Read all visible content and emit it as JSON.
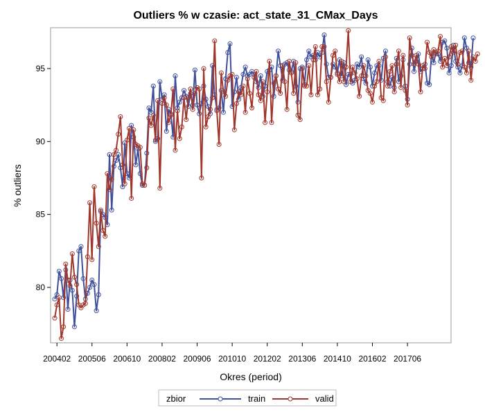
{
  "chart_data": {
    "type": "line",
    "title": "Outliers % w czasie: act_state_31_CMax_Days",
    "xlabel": "Okres (period)",
    "ylabel": "% outliers",
    "x_ticks": [
      "200402",
      "200506",
      "200610",
      "200802",
      "200906",
      "201010",
      "201202",
      "201306",
      "201410",
      "201602",
      "201706"
    ],
    "x_range": [
      "200401",
      "201812"
    ],
    "y_ticks": [
      80,
      85,
      90,
      95
    ],
    "ylim": [
      76.2,
      97.8
    ],
    "grid": false,
    "legend": {
      "title": "zbior",
      "placement": "bottom-center"
    },
    "series": [
      {
        "name": "train",
        "color": "#3f4f9b",
        "start": "200401",
        "values": [
          79.2,
          79.5,
          81.1,
          80.6,
          79.3,
          81.2,
          78.5,
          80.5,
          79.8,
          77.3,
          79.4,
          82.5,
          82.8,
          80.6,
          79.2,
          79.6,
          80.0,
          80.5,
          80.2,
          78.4,
          79.5,
          85.2,
          85.0,
          84.8,
          84.3,
          89.1,
          85.3,
          88.3,
          88.7,
          89.1,
          88.2,
          86.9,
          89.9,
          87.8,
          87.5,
          91.1,
          90.3,
          88.4,
          89.5,
          87.8,
          87.0,
          87.0,
          89.2,
          92.3,
          92.0,
          93.8,
          90.0,
          90.2,
          94.1,
          92.9,
          93.2,
          90.7,
          92.2,
          91.9,
          90.3,
          94.5,
          92.3,
          92.7,
          93.0,
          93.5,
          93.1,
          92.4,
          93.3,
          92.5,
          94.9,
          92.5,
          91.9,
          92.6,
          93.8,
          92.9,
          92.4,
          91.9,
          95.2,
          93.2,
          92.2,
          92.3,
          93.5,
          92.0,
          94.3,
          96.1,
          96.7,
          92.4,
          93.4,
          94.4,
          92.9,
          93.7,
          94.6,
          95.1,
          94.5,
          94.6,
          94.8,
          94.6,
          94.1,
          93.7,
          94.5,
          93.1,
          93.8,
          94.8,
          94.9,
          95.1,
          93.1,
          94.5,
          96.2,
          95.2,
          94.2,
          95.3,
          95.4,
          94.9,
          94.8,
          95.5,
          93.8,
          92.7,
          95.0,
          95.1,
          93.9,
          95.6,
          96.2,
          95.8,
          95.9,
          95.6,
          96.1,
          95.8,
          96.1,
          97.3,
          95.3,
          94.4,
          94.4,
          95.3,
          95.1,
          94.7,
          95.6,
          94.5,
          95.4,
          93.9,
          94.6,
          94.6,
          94.0,
          94.2,
          95.3,
          95.1,
          95.8,
          94.3,
          94.0,
          95.6,
          95.1,
          93.8,
          94.7,
          95.2,
          95.2,
          94.2,
          95.7,
          96.2,
          94.1,
          93.8,
          94.4,
          93.7,
          95.7,
          94.1,
          94.5,
          95.6,
          93.8,
          92.9,
          95.3,
          96.4,
          94.8,
          95.5,
          96.0,
          94.8,
          95.0,
          95.3,
          94.0,
          93.9,
          96.0,
          95.4,
          96.1,
          96.0,
          95.5,
          96.8,
          96.9,
          96.4,
          94.7,
          95.2,
          96.6,
          95.5,
          95.1,
          94.7,
          95.2,
          97.1,
          96.4,
          95.4,
          95.1,
          97.1
        ]
      },
      {
        "name": "valid",
        "color": "#a0362b",
        "start": "200401",
        "values": [
          77.9,
          78.8,
          79.3,
          76.5,
          77.3,
          81.6,
          80.5,
          80.1,
          82.3,
          80.7,
          80.2,
          78.8,
          78.6,
          78.8,
          78.9,
          82.1,
          85.8,
          81.9,
          86.9,
          84.4,
          82.8,
          85.3,
          83.9,
          83.5,
          87.8,
          86.7,
          87.4,
          89.1,
          89.4,
          90.5,
          91.7,
          88.4,
          87.1,
          90.1,
          90.9,
          86.1,
          90.8,
          89.8,
          89.7,
          89.6,
          87.1,
          87.0,
          88.2,
          91.6,
          91.1,
          91.8,
          90.1,
          92.8,
          86.8,
          92.6,
          93.0,
          92.5,
          91.3,
          91.8,
          93.6,
          89.4,
          92.1,
          90.2,
          91.0,
          93.0,
          91.5,
          93.0,
          93.6,
          92.2,
          93.3,
          93.7,
          93.6,
          87.5,
          95.0,
          91.0,
          91.7,
          92.2,
          93.0,
          96.9,
          92.1,
          89.8,
          94.7,
          93.4,
          93.1,
          94.2,
          94.5,
          94.6,
          90.8,
          92.6,
          93.4,
          93.2,
          93.8,
          92.0,
          94.3,
          93.3,
          92.3,
          94.4,
          94.8,
          93.2,
          92.8,
          94.1,
          91.3,
          93.4,
          95.5,
          91.3,
          94.0,
          94.5,
          93.6,
          93.3,
          95.2,
          94.1,
          92.2,
          95.5,
          94.7,
          93.3,
          95.4,
          91.8,
          91.5,
          95.0,
          93.8,
          93.8,
          95.2,
          93.2,
          95.6,
          96.5,
          93.2,
          93.6,
          96.5,
          96.5,
          94.1,
          92.7,
          94.4,
          95.9,
          96.2,
          94.6,
          94.1,
          95.5,
          94.1,
          95.1,
          97.6,
          94.1,
          95.1,
          94.7,
          94.3,
          93.1,
          94.5,
          95.2,
          94.5,
          93.5,
          93.3,
          92.7,
          93.8,
          94.1,
          95.5,
          93.0,
          92.8,
          95.8,
          93.8,
          94.8,
          95.2,
          93.4,
          95.3,
          96.2,
          93.7,
          95.9,
          93.5,
          92.5,
          97.1,
          95.9,
          95.3,
          95.9,
          95.3,
          93.4,
          95.2,
          95.0,
          96.8,
          96.1,
          95.8,
          96.3,
          96.0,
          96.2,
          97.2,
          95.1,
          95.7,
          95.2,
          95.8,
          96.5,
          96.1,
          96.6,
          95.3,
          96.1,
          96.2,
          95.1,
          94.7,
          96.2,
          94.2,
          95.8,
          95.5,
          96.0
        ]
      }
    ]
  }
}
